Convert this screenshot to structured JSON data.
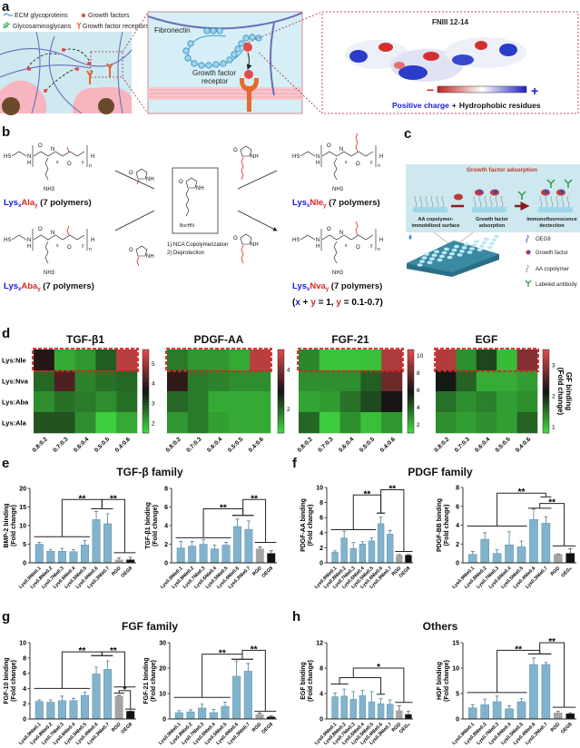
{
  "panel_labels": {
    "a": "a",
    "b": "b",
    "c": "c",
    "d": "d",
    "e": "e",
    "f": "f",
    "g": "g",
    "h": "h"
  },
  "panel_a": {
    "legend": {
      "ecm": "ECM glycoproteins",
      "gf": "Growth factors",
      "gag": "Glycosaminoglycans",
      "gfr": "Growth factor receptors"
    },
    "fibronectin": "Fibronectin",
    "receptor_line1": "Growth factor",
    "receptor_line2": "receptor",
    "protein_title": "FNIII 12-14",
    "minus": "−",
    "plus": "+",
    "positive_charge": "Positive charge",
    "plus_join": "+",
    "hydrophobic": "Hydrophobic residues",
    "colors": {
      "negative": "#d62828",
      "positive": "#1a1adb",
      "receptor": "#e8692c",
      "matrix": "#cfe9f1",
      "cell": "#f7b6bf"
    }
  },
  "panel_b": {
    "chem": {
      "hs": "HS",
      "n": "N",
      "h": "H",
      "o": "O",
      "nh3": "NH3",
      "x": "x",
      "y": "y",
      "n_sub": "n",
      "nh": "NH",
      "bochn": "BocHN"
    },
    "polymers": [
      {
        "lys": "Lys",
        "x": "x",
        "aa": "Ala",
        "y": "y",
        "rest": " (7 polymers)"
      },
      {
        "lys": "Lys",
        "x": "x",
        "aa": "Aba",
        "y": "y",
        "rest": " (7 polymers)"
      },
      {
        "lys": "Lys",
        "x": "x",
        "aa": "Nle",
        "y": "y",
        "rest": " (7 polymers)"
      },
      {
        "lys": "Lys",
        "x": "x",
        "aa": "Nva",
        "y": "y",
        "rest": " (7 polymers)"
      }
    ],
    "step1": "1) NCA Copolymerization",
    "step2": "2) Deprotection",
    "constraint": {
      "open": "(",
      "x": "x",
      "p": " + ",
      "y": "y",
      "eq": " = 1, ",
      "y2": "y",
      "range": " = 0.1-0.7)"
    }
  },
  "panel_c": {
    "title": "Growth factor adsorption",
    "step1": [
      "AA copolymer-",
      "immobilized surface"
    ],
    "step2": [
      "Growth factor",
      "adsorption"
    ],
    "step3": [
      "Immunofluorescence",
      "dectection"
    ],
    "legend": [
      "OEG8",
      "Growth factor",
      "AA copolymer",
      "Labeled antibody"
    ]
  },
  "panel_titles": {
    "e": "TGF-β family",
    "f": "PDGF family",
    "g": "FGF family",
    "h": "Others"
  },
  "heatmap_colorbar_label": [
    "GF binding",
    "(Fold change)"
  ],
  "chart_data": [
    {
      "type": "heatmap",
      "panel": "d",
      "title": "TGF-β1",
      "rows": [
        "Lys:Nle",
        "Lys:Nva",
        "Lys:Aba",
        "Lys:Ala"
      ],
      "columns": [
        "0.8:0.2",
        "0.7:0.3",
        "0.6:0.4",
        "0.5:0.5",
        "0.4:0.6"
      ],
      "values": [
        [
          3.8,
          2.0,
          2.2,
          2.8,
          5.3
        ],
        [
          2.7,
          4.2,
          2.4,
          2.6,
          2.7
        ],
        [
          2.3,
          2.6,
          2.5,
          2.3,
          2.6
        ],
        [
          2.9,
          2.9,
          2.3,
          1.6,
          2.0
        ]
      ],
      "range": [
        1.5,
        5.7
      ],
      "colorbar_ticks": [
        2,
        3,
        4,
        5
      ],
      "highlight_row": "Lys:Nle",
      "colormap": [
        "#3fd83f",
        "#121212",
        "#e04848"
      ]
    },
    {
      "type": "heatmap",
      "panel": "d",
      "title": "PDGF-AA",
      "rows": [
        "Lys:Nle",
        "Lys:Nva",
        "Lys:Aba",
        "Lys:Ala"
      ],
      "columns": [
        "0.8:0.2",
        "0.7:0.3",
        "0.6:0.4",
        "0.5:0.5",
        "0.4:0.6"
      ],
      "values": [
        [
          1.8,
          1.5,
          1.5,
          1.3,
          4.6
        ],
        [
          3.2,
          1.8,
          1.7,
          1.6,
          1.6
        ],
        [
          2.0,
          1.8,
          1.3,
          1.3,
          1.3
        ],
        [
          1.5,
          1.8,
          1.4,
          1.3,
          1.3
        ]
      ],
      "range": [
        0.8,
        5.0
      ],
      "colorbar_ticks": [
        2,
        4
      ],
      "highlight_row": "Lys:Nle",
      "colormap": [
        "#3fd83f",
        "#121212",
        "#e04848"
      ]
    },
    {
      "type": "heatmap",
      "panel": "d",
      "title": "FGF-21",
      "rows": [
        "Lys:Nle",
        "Lys:Nva",
        "Lys:Aba",
        "Lys:Ala"
      ],
      "columns": [
        "0.8:0.2",
        "0.7:0.3",
        "0.6:0.4",
        "0.5:0.5",
        "0.4:0.6"
      ],
      "values": [
        [
          3.0,
          1.5,
          1.5,
          1.6,
          9.5
        ],
        [
          2.8,
          2.8,
          2.8,
          4.0,
          8.0
        ],
        [
          2.3,
          2.5,
          3.5,
          4.5,
          6.0
        ],
        [
          3.8,
          1.3,
          2.8,
          1.6,
          2.6
        ]
      ],
      "range": [
        1.0,
        10.7
      ],
      "colorbar_ticks": [
        2,
        4,
        6,
        8,
        10
      ],
      "highlight_row": "Lys:Nle",
      "colormap": [
        "#3fd83f",
        "#121212",
        "#e04848"
      ]
    },
    {
      "type": "heatmap",
      "panel": "d",
      "title": "EGF",
      "rows": [
        "Lys:Nle",
        "Lys:Nva",
        "Lys:Aba",
        "Lys:Ala"
      ],
      "columns": [
        "0.8:0.2",
        "0.7:0.3",
        "0.6:0.4",
        "0.5:0.5",
        "0.4:0.6"
      ],
      "values": [
        [
          3.2,
          1.3,
          1.8,
          1.0,
          2.9
        ],
        [
          2.1,
          1.6,
          1.1,
          1.1,
          1.2
        ],
        [
          1.5,
          1.3,
          1.4,
          1.2,
          1.3
        ],
        [
          1.3,
          1.2,
          1.3,
          1.2,
          1.6
        ]
      ],
      "range": [
        0.8,
        3.5
      ],
      "colorbar_ticks": [
        1,
        2,
        3
      ],
      "highlight_row": "Lys:Nle",
      "colormap": [
        "#3fd83f",
        "#121212",
        "#e04848"
      ]
    },
    {
      "type": "bar",
      "panel": "e",
      "ylabel": [
        "BMP-2 binding",
        "(Fold change)"
      ],
      "categories": [
        "Lys0.9Nle0.1",
        "Lys0.8Nle0.2",
        "Lys0.7Nle0.3",
        "Lys0.6Nle0.4",
        "Lys0.5Nle0.5",
        "Lys0.4Nle0.6",
        "Lys0.3Nle0.7",
        "RGD",
        "OEG8"
      ],
      "values": [
        5.0,
        3.1,
        3.1,
        3.0,
        4.8,
        11.6,
        10.5,
        0.8,
        0.8
      ],
      "errors": [
        0.5,
        0.5,
        0.8,
        0.6,
        1.2,
        2.2,
        2.7,
        0.5,
        0.7
      ],
      "ylim": [
        0,
        20
      ],
      "yticks": [
        0,
        5,
        10,
        15,
        20
      ],
      "significance": [
        {
          "a": [
            0,
            4
          ],
          "ya": 7,
          "b": [
            5,
            6
          ],
          "yb": 14.5,
          "top": 17,
          "label": "**"
        },
        {
          "a": [
            5,
            6
          ],
          "ya": 14.5,
          "b": [
            7,
            8
          ],
          "yb": 2.7,
          "top": 17,
          "label": "**"
        }
      ]
    },
    {
      "type": "bar",
      "panel": "e",
      "ylabel": [
        "TGF-β1 binding",
        "(Fold change)"
      ],
      "categories": [
        "Lys0.9Nle0.1",
        "Lys0.8Nle0.2",
        "Lys0.7Nle0.3",
        "Lys0.6Nle0.4",
        "Lys0.5Nle0.5",
        "Lys0.4Nle0.6",
        "Lys0.3Nle0.7",
        "RGD",
        "OEG8"
      ],
      "values": [
        1.6,
        1.8,
        2.0,
        1.5,
        1.9,
        3.9,
        3.6,
        1.5,
        1.0
      ],
      "errors": [
        0.7,
        0.5,
        0.5,
        0.4,
        0.3,
        0.8,
        0.9,
        0.2,
        0.3
      ],
      "ylim": [
        0,
        8
      ],
      "yticks": [
        0,
        2,
        4,
        6,
        8
      ],
      "significance": [
        {
          "a": [
            0,
            4
          ],
          "ya": 2.7,
          "b": [
            5,
            6
          ],
          "yb": 5.1,
          "top": 5.8,
          "label": "**"
        },
        {
          "a": [
            5,
            6
          ],
          "ya": 5.1,
          "b": [
            7,
            8
          ],
          "yb": 2.2,
          "top": 6.8,
          "label": "**"
        }
      ]
    },
    {
      "type": "bar",
      "panel": "f",
      "ylabel": [
        "PDGF-AA binding",
        "(Fold change)"
      ],
      "categories": [
        "Lys0.9Nle0.1",
        "Lys0.8Nle0.2",
        "Lys0.7Nle0.3",
        "Lys0.6Nle0.4",
        "Lys0.5Nle0.5",
        "Lys0.4Nle0.6",
        "Lys0.3Nle0.7",
        "RGD",
        "OEG8"
      ],
      "values": [
        1.4,
        3.3,
        1.9,
        2.5,
        2.9,
        5.2,
        3.8,
        1.0,
        1.0
      ],
      "errors": [
        0.2,
        0.9,
        0.8,
        0.3,
        0.4,
        0.9,
        0.5,
        0.1,
        0.1
      ],
      "ylim": [
        0,
        10
      ],
      "yticks": [
        0,
        2,
        4,
        6,
        8,
        10
      ],
      "significance": [
        {
          "a": [
            0,
            4
          ],
          "ya": 4.4,
          "b": [
            5,
            5
          ],
          "yb": 6.6,
          "top": 9.0,
          "label": "**"
        },
        {
          "a": [
            5,
            5
          ],
          "ya": 6.6,
          "b": [
            7,
            8
          ],
          "yb": 1.5,
          "top": 9.7,
          "label": "**"
        }
      ]
    },
    {
      "type": "bar",
      "panel": "f",
      "ylabel": [
        "PDGF-BB binding",
        "(Fold change)"
      ],
      "categories": [
        "Lys0.9Nle0.1",
        "Lys0.8Nle0.2",
        "Lys0.7Nle0.3",
        "Lys0.6Nle0.4",
        "Lys0.5Nle0.5",
        "Lys0.4Nle0.6",
        "Lys0.3Nle0.7",
        "RGD",
        "OEG₈"
      ],
      "values": [
        0.9,
        2.5,
        1.0,
        1.9,
        1.7,
        4.6,
        4.2,
        0.9,
        1.0
      ],
      "errors": [
        0.3,
        0.7,
        0.4,
        1.4,
        0.6,
        1.1,
        0.7,
        0.05,
        0.5
      ],
      "ylim": [
        0,
        8
      ],
      "yticks": [
        0,
        2,
        4,
        6,
        8
      ],
      "significance": [
        {
          "a": [
            0,
            4
          ],
          "ya": 3.9,
          "b": [
            6,
            6
          ],
          "yb": 7.0,
          "top": 7.4,
          "label": "**"
        },
        {
          "a": [
            5,
            6
          ],
          "ya": 5.8,
          "b": [
            7,
            8
          ],
          "yb": 1.8,
          "top": 6.3,
          "label": "**"
        }
      ]
    },
    {
      "type": "bar",
      "panel": "g",
      "ylabel": [
        "FGF-10 binding",
        "(Fold change)"
      ],
      "categories": [
        "Lys0.9Nle0.1",
        "Lys0.8Nle0.2",
        "Lys0.7Nle0.3",
        "Lys0.6Nle0.4",
        "Lys0.5Nle0.5",
        "Lys0.4Nle0.6",
        "Lys0.3Nle0.7",
        "RGD",
        "OEG8"
      ],
      "values": [
        2.3,
        2.2,
        2.4,
        2.4,
        3.1,
        5.9,
        6.5,
        3.0,
        1.0
      ],
      "errors": [
        0.2,
        0.3,
        0.6,
        0.3,
        0.4,
        0.9,
        1.1,
        0.1,
        0.05
      ],
      "ylim": [
        0,
        10
      ],
      "yticks": [
        0,
        2,
        4,
        6,
        8,
        10
      ],
      "significance": [
        {
          "a": [
            0,
            4
          ],
          "ya": 4.0,
          "b": [
            5,
            6
          ],
          "yb": 8.3,
          "top": 8.8,
          "label": "**"
        },
        {
          "a": [
            5,
            6
          ],
          "ya": 8.3,
          "b": [
            7,
            8
          ],
          "yb": 4.2,
          "top": 8.8,
          "label": "**"
        },
        {
          "a": [
            7,
            7
          ],
          "ya": 3.4,
          "b": [
            8,
            8
          ],
          "yb": 1.3,
          "top": 3.7,
          "label": "*"
        }
      ]
    },
    {
      "type": "bar",
      "panel": "g",
      "ylabel": [
        "FGF-21 binding",
        "(Fold change)"
      ],
      "categories": [
        "Lys0.9Nle0.1",
        "Lys0.8Nle0.2",
        "Lys0.7Nle0.3",
        "Lys0.6Nle0.4",
        "Lys0.5Nle0.5",
        "Lys0.4Nle0.6",
        "Lys0.3Nle0.7",
        "RGD",
        "OEG8"
      ],
      "values": [
        2.5,
        2.8,
        4.3,
        2.5,
        5.0,
        16.8,
        18.8,
        1.8,
        0.8
      ],
      "errors": [
        0.8,
        0.8,
        1.5,
        1.3,
        1.7,
        6.0,
        3.0,
        0.5,
        0.4
      ],
      "ylim": [
        0,
        30
      ],
      "yticks": [
        0,
        10,
        20,
        30
      ],
      "significance": [
        {
          "a": [
            0,
            4
          ],
          "ya": 8.5,
          "b": [
            5,
            6
          ],
          "yb": 23.5,
          "top": 25.5,
          "label": "**"
        },
        {
          "a": [
            5,
            6
          ],
          "ya": 23.5,
          "b": [
            7,
            8
          ],
          "yb": 3.0,
          "top": 27,
          "label": "**"
        }
      ]
    },
    {
      "type": "bar",
      "panel": "h",
      "ylabel": [
        "EGF binding",
        "(Fold change)"
      ],
      "categories": [
        "Lys0.9Nle0.1",
        "Lys0.8Nle0.2",
        "Lys0.7Nle0.3",
        "Lys0.6Nle0.4",
        "Lys0.5Nle0.5",
        "Lys0.4Nle0.6",
        "Lys0.3Nle0.7",
        "RGD",
        "OEG₈"
      ],
      "values": [
        3.5,
        3.6,
        3.1,
        3.7,
        2.7,
        2.4,
        2.3,
        1.3,
        0.7
      ],
      "errors": [
        0.6,
        1.1,
        1.2,
        0.8,
        1.6,
        0.8,
        0.7,
        0.8,
        0.5
      ],
      "ylim": [
        0,
        12
      ],
      "yticks": [
        0,
        4,
        8,
        12
      ],
      "significance": [
        {
          "a": [
            0,
            1
          ],
          "ya": 5.5,
          "b": [
            5,
            5
          ],
          "yb": 3.9,
          "top": 6.5,
          "label": ""
        },
        {
          "a": [
            2,
            2
          ],
          "ya": 6.5,
          "b": [
            7,
            8
          ],
          "yb": 2.6,
          "top": 8.0,
          "label": "*"
        }
      ]
    },
    {
      "type": "bar",
      "panel": "h",
      "ylabel": [
        "HGF binding",
        "(Fold change)"
      ],
      "categories": [
        "Lys0.9Nle0.1",
        "Lys0.8Nle0.2",
        "Lys0.7Nle0.3",
        "Lys0.6Nle0.4",
        "Lys0.5Nle0.5",
        "Lys0.4Nle0.6",
        "Lys0.3Nle0.7",
        "RGD",
        "OEG8"
      ],
      "values": [
        2.2,
        2.8,
        3.4,
        2.0,
        3.4,
        10.7,
        10.7,
        1.2,
        1.0
      ],
      "errors": [
        0.6,
        1.1,
        1.1,
        0.6,
        0.6,
        1.3,
        0.4,
        0.3,
        0.2
      ],
      "ylim": [
        0,
        15
      ],
      "yticks": [
        0,
        5,
        10,
        15
      ],
      "significance": [
        {
          "a": [
            0,
            4
          ],
          "ya": 5.2,
          "b": [
            5,
            6
          ],
          "yb": 12.8,
          "top": 13.5,
          "label": "**"
        },
        {
          "a": [
            5,
            6
          ],
          "ya": 12.8,
          "b": [
            7,
            8
          ],
          "yb": 2.3,
          "top": 15,
          "label": "**"
        }
      ]
    }
  ],
  "bar_colors": {
    "polymer": "#82b3cc",
    "RGD": "#a5a5a5",
    "OEG": "#111111"
  }
}
